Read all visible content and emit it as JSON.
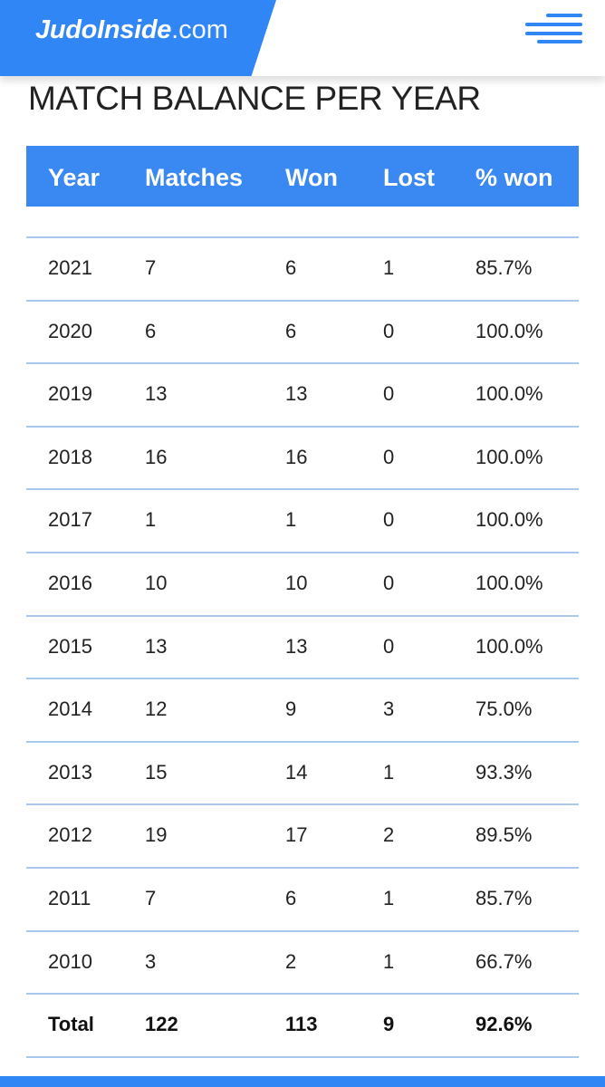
{
  "header": {
    "brand": "JudoInside",
    "domain": ".com",
    "menu_icon": "hamburger-menu-icon",
    "accent_color": "#2f86f4"
  },
  "section": {
    "title": "MATCH BALANCE PER YEAR"
  },
  "table": {
    "columns": [
      "Year",
      "Matches",
      "Won",
      "Lost",
      "% won"
    ],
    "rows": [
      {
        "year": "2021",
        "matches": "7",
        "won": "6",
        "lost": "1",
        "percent_won": "85.7%"
      },
      {
        "year": "2020",
        "matches": "6",
        "won": "6",
        "lost": "0",
        "percent_won": "100.0%"
      },
      {
        "year": "2019",
        "matches": "13",
        "won": "13",
        "lost": "0",
        "percent_won": "100.0%"
      },
      {
        "year": "2018",
        "matches": "16",
        "won": "16",
        "lost": "0",
        "percent_won": "100.0%"
      },
      {
        "year": "2017",
        "matches": "1",
        "won": "1",
        "lost": "0",
        "percent_won": "100.0%"
      },
      {
        "year": "2016",
        "matches": "10",
        "won": "10",
        "lost": "0",
        "percent_won": "100.0%"
      },
      {
        "year": "2015",
        "matches": "13",
        "won": "13",
        "lost": "0",
        "percent_won": "100.0%"
      },
      {
        "year": "2014",
        "matches": "12",
        "won": "9",
        "lost": "3",
        "percent_won": "75.0%"
      },
      {
        "year": "2013",
        "matches": "15",
        "won": "14",
        "lost": "1",
        "percent_won": "93.3%"
      },
      {
        "year": "2012",
        "matches": "19",
        "won": "17",
        "lost": "2",
        "percent_won": "89.5%"
      },
      {
        "year": "2011",
        "matches": "7",
        "won": "6",
        "lost": "1",
        "percent_won": "85.7%"
      },
      {
        "year": "2010",
        "matches": "3",
        "won": "2",
        "lost": "1",
        "percent_won": "66.7%"
      }
    ],
    "total": {
      "label": "Total",
      "matches": "122",
      "won": "113",
      "lost": "9",
      "percent_won": "92.6%"
    },
    "header_color": "#3a89f2",
    "line_color": "#a9c8ee"
  }
}
